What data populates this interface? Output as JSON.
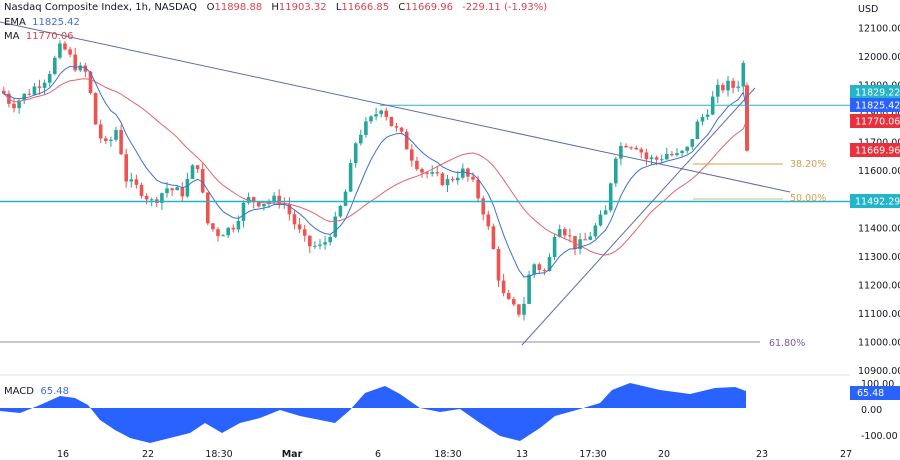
{
  "header": {
    "symbol": "Nasdaq Composite Index, 1h, NASDAQ",
    "open_label": "O",
    "open": "11898.88",
    "high_label": "H",
    "high": "11903.32",
    "low_label": "L",
    "low": "11666.85",
    "close_label": "C",
    "close": "11669.96",
    "change": "-229.11 (-1.93%)"
  },
  "indicators": {
    "ema_label": "EMA",
    "ema_value": "11825.42",
    "ma_label": "MA",
    "ma_value": "11770.06",
    "macd_label": "MACD",
    "macd_value": "65.48"
  },
  "price_axis": {
    "currency": "USD",
    "ticks": [
      "12100.00",
      "12000.00",
      "11900.00",
      "11800.00",
      "11700.00",
      "11600.00",
      "11500.00",
      "11400.00",
      "11300.00",
      "11200.00",
      "11100.00",
      "11000.00",
      "10900.00"
    ],
    "tags": [
      {
        "label": "11829.22",
        "color": "#22b5c8"
      },
      {
        "label": "11825.42",
        "color": "#2962ff"
      },
      {
        "label": "11770.06",
        "color": "#e8313c"
      },
      {
        "label": "11669.96",
        "color": "#e8313c"
      },
      {
        "label": "11492.29",
        "color": "#22b5c8"
      }
    ]
  },
  "macd_axis": {
    "ticks": [
      "100.00",
      "0.00",
      "-100.00"
    ],
    "tag": "65.48"
  },
  "time_axis": {
    "labels": [
      "16",
      "22",
      "18:30",
      "Mar",
      "6",
      "18:30",
      "13",
      "17:30",
      "20",
      "23",
      "27"
    ]
  },
  "fib_levels": [
    {
      "label": "38.20%",
      "color": "#d1a04a"
    },
    {
      "label": "50.00%",
      "color": "#d1a04a"
    },
    {
      "label": "61.80%",
      "color": "#7a5ca8"
    }
  ],
  "colors": {
    "up": "#26a69a",
    "down": "#ef5350",
    "ema": "#3d6fd6",
    "ma": "#e06570",
    "horizontal_line": "#22b5c8",
    "trendline": "#5b6fa8",
    "macd": "#2962ff"
  },
  "chart_data": {
    "type": "candlestick",
    "title": "Nasdaq Composite Index, 1h, NASDAQ",
    "ylabel": "USD",
    "ylim": [
      10900,
      12150
    ],
    "x_ticks": [
      "16",
      "22",
      "18:30",
      "Mar",
      "6",
      "18:30",
      "13",
      "17:30",
      "20",
      "23",
      "27"
    ],
    "last_ohlc": {
      "open": 11898.88,
      "high": 11903.32,
      "low": 11666.85,
      "close": 11669.96,
      "change": -229.11,
      "change_pct": -1.93
    },
    "series": [
      {
        "name": "EMA",
        "last": 11825.42
      },
      {
        "name": "MA",
        "last": 11770.06
      },
      {
        "name": "MACD",
        "last": 65.48
      }
    ],
    "horizontal_levels": [
      11829.22,
      11492.29,
      11000.0
    ],
    "fibonacci": [
      {
        "level": "38.20%",
        "price": 11640
      },
      {
        "level": "50.00%",
        "price": 11492
      },
      {
        "level": "61.80%",
        "price": 11000
      }
    ],
    "approx_path": [
      {
        "x": "16",
        "price": 11920
      },
      {
        "x": "22",
        "price": 11480
      },
      {
        "x": "18:30",
        "price": 11370
      },
      {
        "x": "Mar",
        "price": 11300
      },
      {
        "x": "6",
        "price": 11820
      },
      {
        "x": "18:30",
        "price": 11560
      },
      {
        "x": "13",
        "price": 11000
      },
      {
        "x": "17:30",
        "price": 11300
      },
      {
        "x": "20",
        "price": 11640
      },
      {
        "x": "22",
        "price": 11990
      },
      {
        "x": "last",
        "price": 11669.96
      }
    ]
  }
}
